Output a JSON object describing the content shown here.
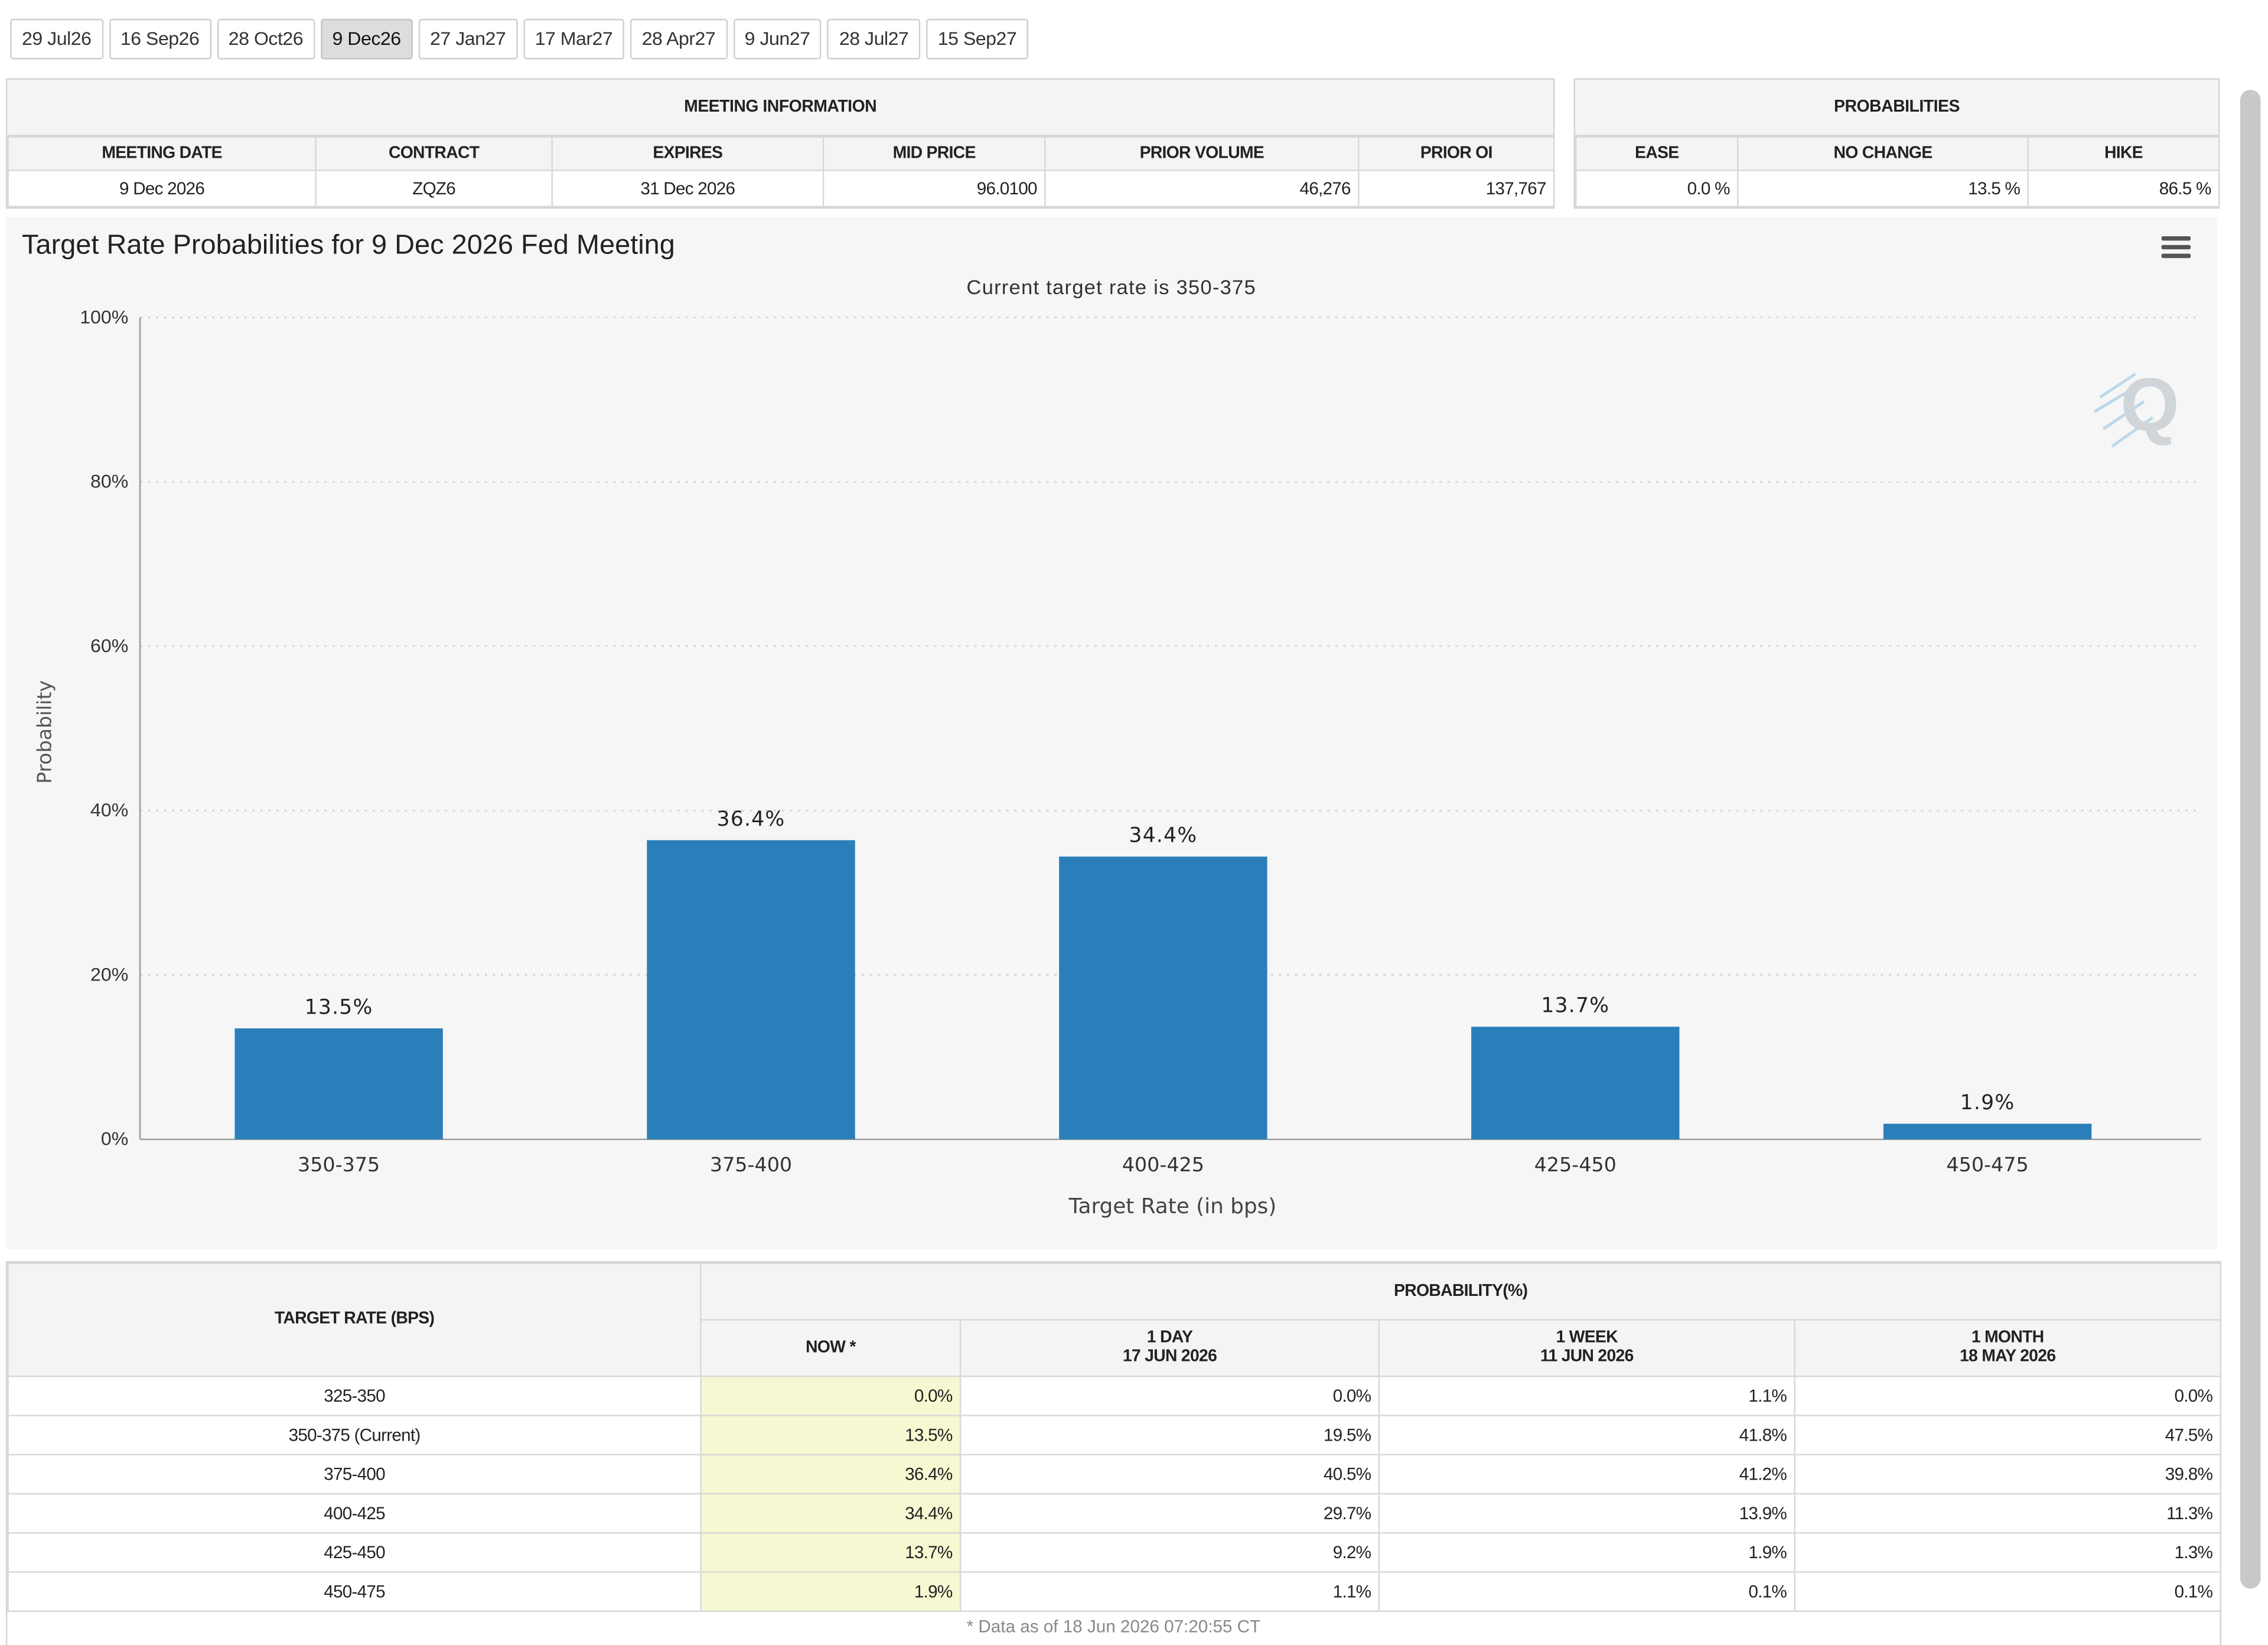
{
  "tabs": [
    "29 Jul26",
    "16 Sep26",
    "28 Oct26",
    "9 Dec26",
    "27 Jan27",
    "17 Mar27",
    "28 Apr27",
    "9 Jun27",
    "28 Jul27",
    "15 Sep27"
  ],
  "active_tab": 3,
  "meeting_info": {
    "title": "MEETING INFORMATION",
    "headers": [
      "MEETING DATE",
      "CONTRACT",
      "EXPIRES",
      "MID PRICE",
      "PRIOR VOLUME",
      "PRIOR OI"
    ],
    "values": [
      "9 Dec 2026",
      "ZQZ6",
      "31 Dec 2026",
      "96.0100",
      "46,276",
      "137,767"
    ]
  },
  "probabilities": {
    "title": "PROBABILITIES",
    "headers": [
      "EASE",
      "NO CHANGE",
      "HIKE"
    ],
    "values": [
      "0.0 %",
      "13.5 %",
      "86.5 %"
    ]
  },
  "chart": {
    "menu_icon": "hamburger-menu-icon",
    "watermark": "Q",
    "bar_color": "#2a7fba"
  },
  "chart_data": {
    "type": "bar",
    "title": "Target Rate Probabilities for 9 Dec 2026 Fed Meeting",
    "subtitle": "Current target rate is 350-375",
    "xlabel": "Target Rate (in bps)",
    "ylabel": "Probability",
    "categories": [
      "350-375",
      "375-400",
      "400-425",
      "425-450",
      "450-475"
    ],
    "values": [
      13.5,
      36.4,
      34.4,
      13.7,
      1.9
    ],
    "data_labels": [
      "13.5%",
      "36.4%",
      "34.4%",
      "13.7%",
      "1.9%"
    ],
    "ylim": [
      0,
      100
    ],
    "yticks": [
      "0%",
      "20%",
      "40%",
      "60%",
      "80%",
      "100%"
    ],
    "grid": true,
    "legend": "none"
  },
  "prob_table": {
    "col_header": "TARGET RATE (BPS)",
    "group_header": "PROBABILITY(%)",
    "periods": [
      {
        "label": "NOW *",
        "date": ""
      },
      {
        "label": "1 DAY",
        "date": "17 JUN 2026"
      },
      {
        "label": "1 WEEK",
        "date": "11 JUN 2026"
      },
      {
        "label": "1 MONTH",
        "date": "18 MAY 2026"
      }
    ],
    "rows": [
      {
        "rate": "325-350",
        "vals": [
          "0.0%",
          "0.0%",
          "1.1%",
          "0.0%"
        ]
      },
      {
        "rate": "350-375 (Current)",
        "vals": [
          "13.5%",
          "19.5%",
          "41.8%",
          "47.5%"
        ]
      },
      {
        "rate": "375-400",
        "vals": [
          "36.4%",
          "40.5%",
          "41.2%",
          "39.8%"
        ]
      },
      {
        "rate": "400-425",
        "vals": [
          "34.4%",
          "29.7%",
          "13.9%",
          "11.3%"
        ]
      },
      {
        "rate": "425-450",
        "vals": [
          "13.7%",
          "9.2%",
          "1.9%",
          "1.3%"
        ]
      },
      {
        "rate": "450-475",
        "vals": [
          "1.9%",
          "1.1%",
          "0.1%",
          "0.1%"
        ]
      }
    ],
    "footnote": "* Data as of 18 Jun 2026 07:20:55 CT"
  }
}
